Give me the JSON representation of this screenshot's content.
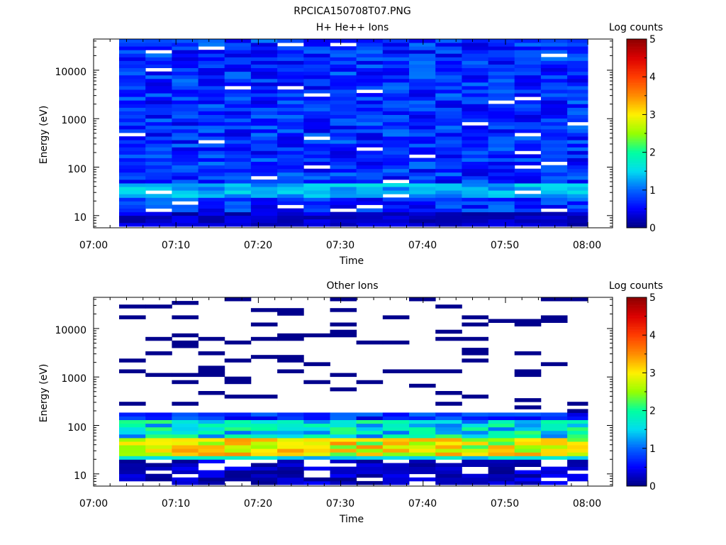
{
  "figure_title": "RPCICA150708T07.PNG",
  "chart_data": [
    {
      "type": "heatmap",
      "title": "H+ He++ Ions",
      "xlabel": "Time",
      "ylabel": "Energy (eV)",
      "x_ticks": [
        "07:00",
        "07:10",
        "07:20",
        "07:30",
        "07:40",
        "07:50",
        "08:00"
      ],
      "y_ticks": [
        "10",
        "100",
        "1000",
        "10000"
      ],
      "y_scale": "log",
      "ylim": [
        5.6,
        44000
      ],
      "xlim": [
        "07:00",
        "08:03"
      ],
      "colorbar": {
        "label": "Log counts",
        "ticks": [
          "0",
          "1",
          "2",
          "3",
          "4",
          "5"
        ],
        "range": [
          0,
          5
        ],
        "colormap": "rainbow (navy → blue → cyan → green → yellow → orange → red → dark red)"
      },
      "time_columns_minutes": [
        3.1,
        6.3,
        9.5,
        12.7,
        15.9,
        19.1,
        22.3,
        25.5,
        28.7,
        31.9,
        35.1,
        38.3,
        41.5,
        44.7,
        47.9,
        51.1,
        54.3,
        57.5,
        60.0
      ],
      "description": "Dense spectrogram; most energy bins 0.5–1 log counts across 10–40000 eV, brighter 1–1.5 near 30–50 eV, sparse white gaps."
    },
    {
      "type": "heatmap",
      "title": "Other Ions",
      "xlabel": "Time",
      "ylabel": "Energy (eV)",
      "x_ticks": [
        "07:00",
        "07:10",
        "07:20",
        "07:30",
        "07:40",
        "07:50",
        "08:00"
      ],
      "y_ticks": [
        "10",
        "100",
        "1000",
        "10000"
      ],
      "y_scale": "log",
      "ylim": [
        5.6,
        44000
      ],
      "xlim": [
        "07:00",
        "08:03"
      ],
      "colorbar": {
        "label": "Log counts",
        "ticks": [
          "0",
          "1",
          "2",
          "3",
          "4",
          "5"
        ],
        "range": [
          0,
          5
        ],
        "colormap": "rainbow (navy → blue → cyan → green → yellow → orange → red → dark red)"
      },
      "time_columns_minutes": [
        3.1,
        6.3,
        9.5,
        12.7,
        15.9,
        19.1,
        22.3,
        25.5,
        28.7,
        31.9,
        35.1,
        38.3,
        41.5,
        44.7,
        47.9,
        51.1,
        54.3,
        57.5,
        60.0
      ],
      "description": "Strong band at 25–60 eV reaching 3–3.6 log counts; moderate 1–2 up to ~200 eV; sparse low-count lines above 200 eV."
    }
  ]
}
